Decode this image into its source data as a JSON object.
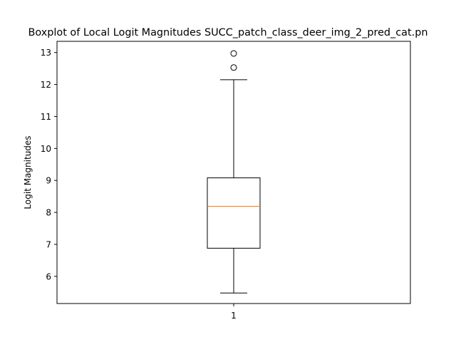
{
  "chart_data": {
    "type": "box",
    "title": "Boxplot of Local Logit Magnitudes SUCC_patch_class_deer_img_2_pred_cat.pn",
    "xlabel": "",
    "ylabel": "Logit Magnitudes",
    "categories": [
      "1"
    ],
    "ylim": [
      5.15,
      13.35
    ],
    "yticks": [
      6,
      7,
      8,
      9,
      10,
      11,
      12,
      13
    ],
    "grid": false,
    "boxes": [
      {
        "category": "1",
        "whisker_low": 5.48,
        "q1": 6.88,
        "median": 8.19,
        "q3": 9.08,
        "whisker_high": 12.15,
        "outliers": [
          12.53,
          12.97
        ]
      }
    ],
    "colors": {
      "median": "#ff7f0e",
      "box": "#000000"
    }
  }
}
